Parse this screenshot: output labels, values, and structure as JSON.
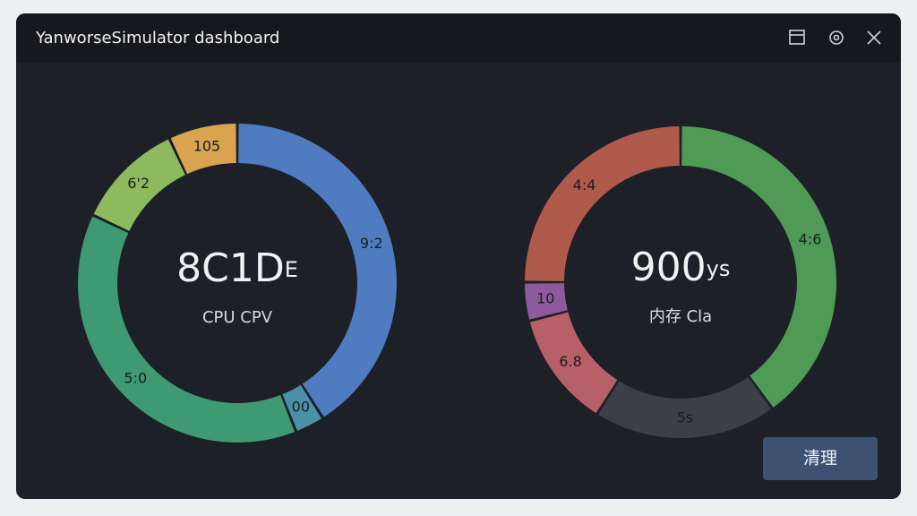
{
  "window": {
    "title": "YanworseSimulator dashboard"
  },
  "charts": [
    {
      "type": "donut",
      "center_value": "8C1D",
      "center_unit": "E",
      "subtitle": "CPU CPV",
      "segments": [
        {
          "label": "9:2",
          "value": 41,
          "color": "#4f7bc0"
        },
        {
          "label": "00",
          "value": 3,
          "color": "#4a90a8"
        },
        {
          "label": "5:0",
          "value": 38,
          "color": "#3d9a72"
        },
        {
          "label": "6'2",
          "value": 11,
          "color": "#8cba5c"
        },
        {
          "label": "105",
          "value": 7,
          "color": "#d8a450"
        }
      ]
    },
    {
      "type": "donut",
      "center_value": "900",
      "center_unit": "ys",
      "subtitle": "内存 Cla",
      "segments": [
        {
          "label": "4:6",
          "value": 40,
          "color": "#4f9a54"
        },
        {
          "label": "5s",
          "value": 19,
          "color": "#3c3f47"
        },
        {
          "label": "6.8",
          "value": 12,
          "color": "#b86068"
        },
        {
          "label": "10",
          "value": 4,
          "color": "#8e5a9e"
        },
        {
          "label": "4:4",
          "value": 25,
          "color": "#b05a4c"
        }
      ]
    }
  ],
  "button": "清理"
}
